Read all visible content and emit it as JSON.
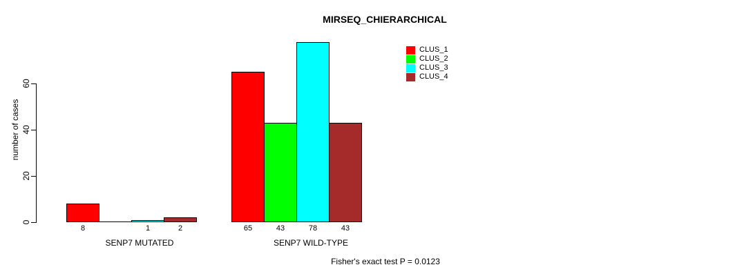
{
  "chart_data": {
    "type": "bar",
    "title": "MIRSEQ_CHIERARCHICAL",
    "ylabel": "number of cases",
    "xlabel": "",
    "ylim": [
      0,
      60
    ],
    "yticks": [
      0,
      20,
      40,
      60
    ],
    "grid": false,
    "legend_position": "top-right",
    "categories": [
      "SENP7 MUTATED",
      "SENP7 WILD-TYPE"
    ],
    "series": [
      {
        "name": "CLUS_1",
        "color": "#FF0000",
        "values": [
          8,
          65
        ]
      },
      {
        "name": "CLUS_2",
        "color": "#00FF00",
        "values": [
          0,
          43
        ]
      },
      {
        "name": "CLUS_3",
        "color": "#00FFFF",
        "values": [
          1,
          78
        ]
      },
      {
        "name": "CLUS_4",
        "color": "#A52A2A",
        "values": [
          2,
          43
        ]
      }
    ],
    "bar_labels": [
      [
        "8",
        "",
        "1",
        "2"
      ],
      [
        "65",
        "43",
        "78",
        "43"
      ]
    ],
    "annotation": "Fisher's exact test P = 0.0123",
    "axis_color": "#000000",
    "background_color": "#FFFFFF"
  }
}
